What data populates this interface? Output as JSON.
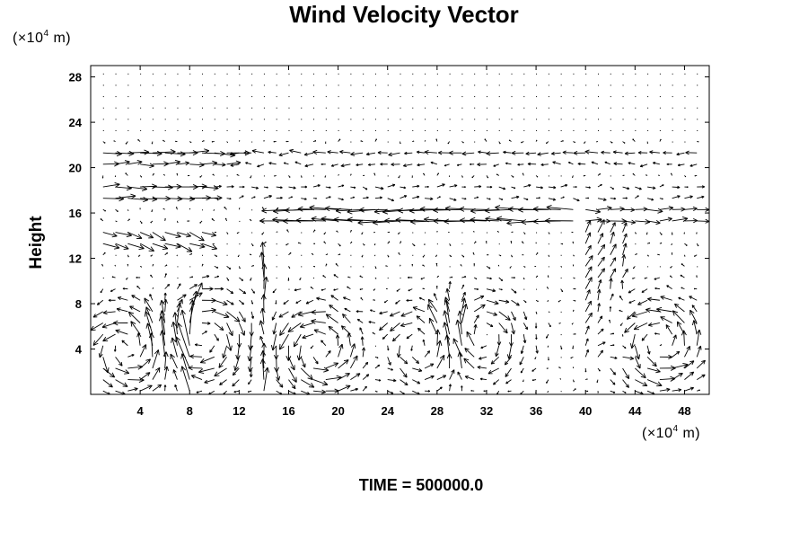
{
  "chart_data": {
    "type": "quiver",
    "title": "Wind Velocity Vector",
    "ylabel": "Height",
    "y_unit": "(×10⁴ m)",
    "x_unit": "(×10⁴ m)",
    "footer": "TIME = 500000.0",
    "xlim": [
      0,
      50
    ],
    "ylim": [
      0,
      29
    ],
    "x_ticks": [
      4,
      8,
      12,
      16,
      20,
      24,
      28,
      32,
      36,
      40,
      44,
      48
    ],
    "y_ticks": [
      4,
      8,
      12,
      16,
      20,
      24,
      28
    ],
    "grid": false,
    "x_step": 1,
    "y_step": 1
  },
  "labels": {
    "title": "Wind Velocity Vector",
    "ylabel": "Height",
    "unit_y_prefix": "(×10",
    "unit_y_exp": "4",
    "unit_y_suffix": " m)",
    "unit_x_prefix": "(×10",
    "unit_x_exp": "4",
    "unit_x_suffix": " m)",
    "time": "TIME = 500000.0"
  }
}
